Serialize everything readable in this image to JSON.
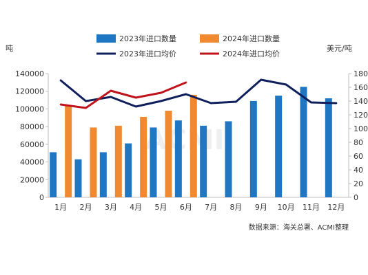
{
  "chart_data": {
    "type": "bar",
    "categories": [
      "1月",
      "2月",
      "3月",
      "4月",
      "5月",
      "6月",
      "7月",
      "8月",
      "9月",
      "10月",
      "11月",
      "12月"
    ],
    "y_left": {
      "label": "吨",
      "range": [
        0,
        140000
      ],
      "ticks": [
        "0",
        "20000",
        "40000",
        "60000",
        "80000",
        "100000",
        "120000",
        "140000"
      ]
    },
    "y_right": {
      "label": "美元/吨",
      "range": [
        0,
        180
      ],
      "ticks": [
        "0",
        "20",
        "40",
        "60",
        "80",
        "100",
        "120",
        "140",
        "160",
        "180"
      ]
    },
    "series": [
      {
        "name": "2023年进口数量",
        "kind": "bar",
        "axis": "left",
        "color": "#1f77c4",
        "values": [
          51000,
          43000,
          51000,
          61000,
          79000,
          87000,
          81000,
          86000,
          109000,
          115000,
          125000,
          112000
        ]
      },
      {
        "name": "2024年进口数量",
        "kind": "bar",
        "axis": "left",
        "color": "#ef8a32",
        "values": [
          104000,
          79000,
          81000,
          91000,
          98000,
          116000,
          null,
          null,
          null,
          null,
          null,
          null
        ]
      },
      {
        "name": "2023年进口均价",
        "kind": "line",
        "axis": "right",
        "color": "#0f1f5c",
        "values": [
          170,
          140,
          146,
          132,
          140,
          150,
          137,
          139,
          171,
          164,
          138,
          137
        ]
      },
      {
        "name": "2024年进口均价",
        "kind": "line",
        "axis": "right",
        "color": "#c0141c",
        "values": [
          135,
          130,
          155,
          145,
          152,
          167,
          null,
          null,
          null,
          null,
          null,
          null
        ]
      }
    ],
    "legend_position": "top",
    "grid": false,
    "source": "数据来源：海关总署、ACMI整理",
    "watermark": "ACMI"
  }
}
